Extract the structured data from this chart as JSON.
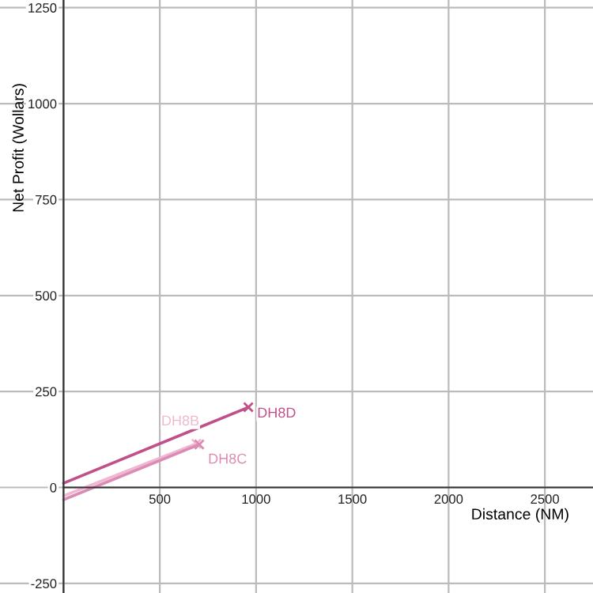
{
  "chart_data": {
    "type": "line",
    "xlabel": "Distance (NM)",
    "ylabel": "Net Profit (Wollars)",
    "series": [
      {
        "name": "DH8D",
        "color": "#c0508a",
        "x": [
          0,
          960
        ],
        "values": [
          11,
          209
        ]
      },
      {
        "name": "DH8B",
        "color": "#f0b8d0",
        "x": [
          0,
          690
        ],
        "values": [
          -22,
          114
        ]
      },
      {
        "name": "DH8C",
        "color": "#dc8cb4",
        "x": [
          0,
          705
        ],
        "values": [
          -32,
          112
        ]
      }
    ],
    "xlim": [
      -330,
      2750
    ],
    "ylim": [
      -275,
      1270
    ],
    "xticks": [
      {
        "value": 0,
        "label": null
      },
      500,
      1000,
      1500,
      2000,
      2500
    ],
    "yticks": [
      -250,
      0,
      250,
      500,
      750,
      1000,
      1250
    ],
    "grid": true,
    "marker": "cross",
    "legend": false
  }
}
